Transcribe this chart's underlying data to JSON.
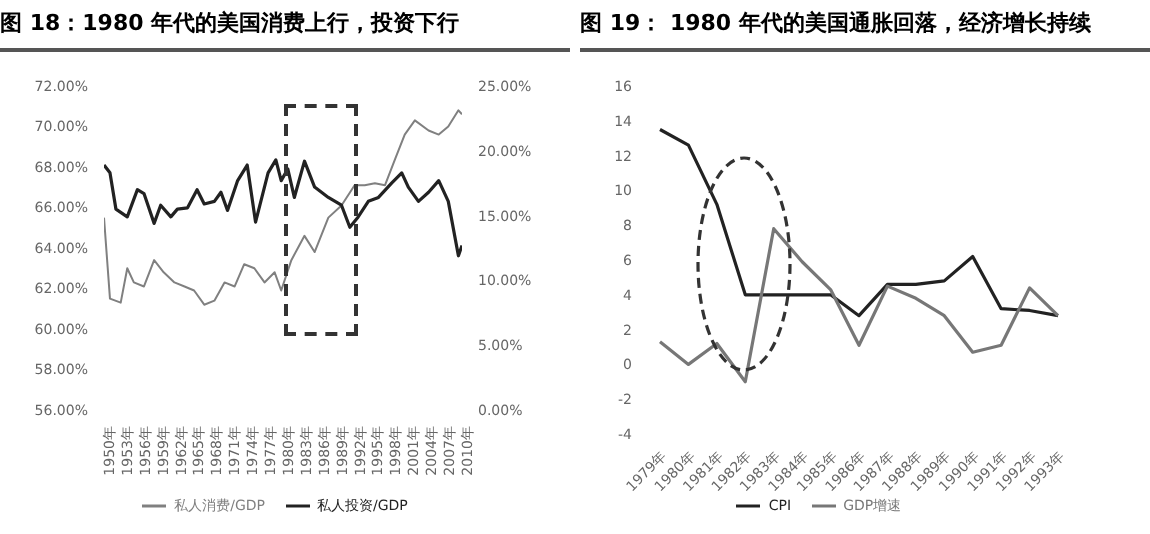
{
  "chart_data": [
    {
      "type": "line",
      "title": "图 18：1980 年代的美国消费上行，投资下行",
      "xlim": [
        1950,
        2010
      ],
      "xticks": [
        {
          "value": 1950,
          "label": "1950年"
        },
        {
          "value": 1953,
          "label": "1953年"
        },
        {
          "value": 1956,
          "label": "1956年"
        },
        {
          "value": 1959,
          "label": "1959年"
        },
        {
          "value": 1962,
          "label": "1962年"
        },
        {
          "value": 1965,
          "label": "1965年"
        },
        {
          "value": 1968,
          "label": "1968年"
        },
        {
          "value": 1971,
          "label": "1971年"
        },
        {
          "value": 1974,
          "label": "1974年"
        },
        {
          "value": 1977,
          "label": "1977年"
        },
        {
          "value": 1980,
          "label": "1980年"
        },
        {
          "value": 1983,
          "label": "1983年"
        },
        {
          "value": 1986,
          "label": "1986年"
        },
        {
          "value": 1989,
          "label": "1989年"
        },
        {
          "value": 1992,
          "label": "1992年"
        },
        {
          "value": 1995,
          "label": "1995年"
        },
        {
          "value": 1998,
          "label": "1998年"
        },
        {
          "value": 2001,
          "label": "2001年"
        },
        {
          "value": 2004,
          "label": "2004年"
        },
        {
          "value": 2007,
          "label": "2007年"
        },
        {
          "value": 2010,
          "label": "2010年"
        }
      ],
      "ylim": [
        56,
        72
      ],
      "yticks": [
        {
          "value": 56,
          "label": "56.00%"
        },
        {
          "value": 58,
          "label": "58.00%"
        },
        {
          "value": 60,
          "label": "60.00%"
        },
        {
          "value": 62,
          "label": "62.00%"
        },
        {
          "value": 64,
          "label": "64.00%"
        },
        {
          "value": 66,
          "label": "66.00%"
        },
        {
          "value": 68,
          "label": "68.00%"
        },
        {
          "value": 70,
          "label": "70.00%"
        },
        {
          "value": 72,
          "label": "72.00%"
        }
      ],
      "y2lim": [
        0,
        25
      ],
      "y2ticks": [
        {
          "value": 0,
          "label": "0.00%"
        },
        {
          "value": 5,
          "label": "5.00%"
        },
        {
          "value": 10,
          "label": "10.00%"
        },
        {
          "value": 15,
          "label": "15.00%"
        },
        {
          "value": 20,
          "label": "20.00%"
        },
        {
          "value": 25,
          "label": "25.00%"
        }
      ],
      "legend": "bottom",
      "series": [
        {
          "name": "私人消费/GDP",
          "color": "#808080",
          "x": [
            1950,
            1951,
            1952.8,
            1953.9,
            1955,
            1956.7,
            1958.4,
            1960,
            1961.8,
            1963.5,
            1965.1,
            1966.8,
            1968.5,
            1970.2,
            1971.9,
            1973.5,
            1975.2,
            1976.9,
            1978.6,
            1979.7,
            1981.4,
            1983.6,
            1985.3,
            1987.6,
            1989.8,
            1992,
            1993.7,
            1995.4,
            1997.1,
            1998.8,
            2000.4,
            2002.1,
            2004.4,
            2006.1,
            2007.7,
            2009.4,
            2010
          ],
          "values": [
            65.5,
            61.5,
            61.3,
            63.0,
            62.3,
            62.1,
            63.4,
            62.8,
            62.3,
            62.1,
            61.9,
            61.2,
            61.4,
            62.3,
            62.1,
            63.2,
            63.0,
            62.3,
            62.8,
            61.9,
            63.4,
            64.6,
            63.8,
            65.5,
            66.1,
            67.1,
            67.1,
            67.2,
            67.1,
            68.4,
            69.6,
            70.3,
            69.8,
            69.6,
            70.0,
            70.8,
            70.6
          ]
        },
        {
          "name": "私人投资/GDP",
          "color": "#222222",
          "axis": "y2",
          "x": [
            1950,
            1951,
            1952,
            1953.9,
            1955.6,
            1956.7,
            1958.4,
            1959.5,
            1961.2,
            1962.3,
            1964,
            1965.6,
            1966.8,
            1968.5,
            1969.6,
            1970.7,
            1972.4,
            1974,
            1975.4,
            1977.5,
            1978.8,
            1979.7,
            1980.8,
            1981.9,
            1983.6,
            1985.3,
            1987.6,
            1989.8,
            1991.2,
            1992.6,
            1994.3,
            1996,
            1998.2,
            1999.9,
            2001,
            2002.7,
            2004.4,
            2006.1,
            2007.7,
            2009.4,
            2010
          ],
          "values": [
            18.9,
            18.3,
            15.5,
            14.9,
            17.0,
            16.7,
            14.4,
            15.8,
            14.9,
            15.5,
            15.6,
            17.0,
            15.9,
            16.1,
            16.8,
            15.4,
            17.7,
            18.9,
            14.5,
            18.3,
            19.3,
            17.7,
            18.6,
            16.4,
            19.2,
            17.2,
            16.4,
            15.8,
            14.1,
            14.9,
            16.1,
            16.4,
            17.5,
            18.3,
            17.2,
            16.1,
            16.8,
            17.7,
            16.1,
            11.9,
            12.7
          ]
        }
      ]
    },
    {
      "type": "line",
      "title": "图 19： 1980 年代的美国通胀回落，经济增长持续",
      "categories": [
        "1979年",
        "1980年",
        "1981年",
        "1982年",
        "1983年",
        "1984年",
        "1985年",
        "1986年",
        "1987年",
        "1988年",
        "1989年",
        "1990年",
        "1991年",
        "1992年",
        "1993年"
      ],
      "ylim": [
        -4,
        16
      ],
      "yticks": [
        -4,
        -2,
        0,
        2,
        4,
        6,
        8,
        10,
        12,
        14,
        16
      ],
      "legend": "bottom",
      "series": [
        {
          "name": "CPI",
          "color": "#222222",
          "values": [
            13.5,
            12.6,
            9.2,
            4.0,
            4.0,
            4.0,
            4.0,
            2.8,
            4.6,
            4.6,
            4.8,
            6.2,
            3.2,
            3.1,
            2.8
          ]
        },
        {
          "name": "GDP增速",
          "color": "#777777",
          "values": [
            1.3,
            0.0,
            1.2,
            -1.0,
            7.8,
            5.9,
            4.3,
            1.1,
            4.5,
            3.8,
            2.8,
            0.7,
            1.1,
            4.4,
            2.8
          ]
        }
      ]
    }
  ]
}
